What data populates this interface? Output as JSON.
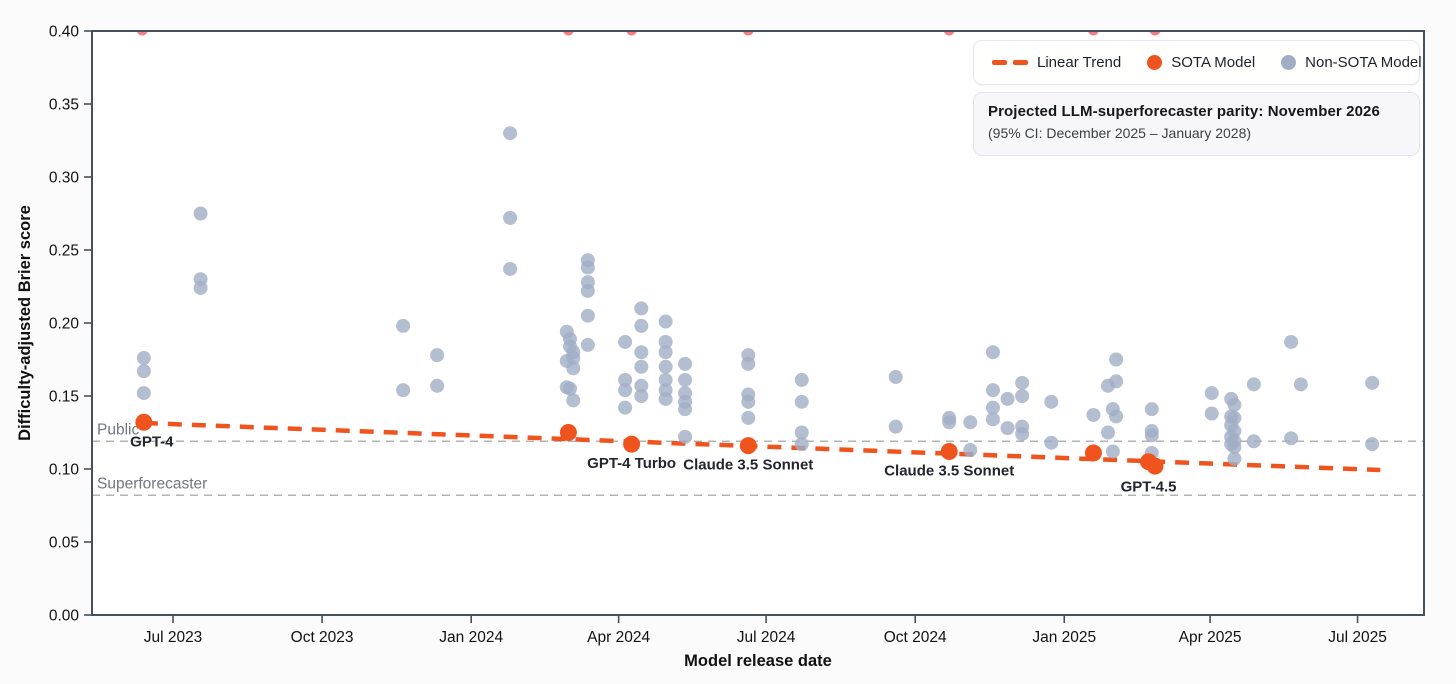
{
  "chart_data": {
    "type": "scatter",
    "xlabel": "Model release date",
    "ylabel": "Difficulty-adjusted Brier score",
    "ylim": [
      0,
      0.4
    ],
    "y_ticks": [
      "0.00",
      "0.05",
      "0.10",
      "0.15",
      "0.20",
      "0.25",
      "0.30",
      "0.35",
      "0.40"
    ],
    "x_domain": [
      "2023-05-12",
      "2025-08-11"
    ],
    "x_ticks": [
      {
        "label": "Jul 2023",
        "date": "2023-07-01"
      },
      {
        "label": "Oct 2023",
        "date": "2023-10-01"
      },
      {
        "label": "Jan 2024",
        "date": "2024-01-01"
      },
      {
        "label": "Apr 2024",
        "date": "2024-04-01"
      },
      {
        "label": "Jul 2024",
        "date": "2024-07-01"
      },
      {
        "label": "Oct 2024",
        "date": "2024-10-01"
      },
      {
        "label": "Jan 2025",
        "date": "2025-01-01"
      },
      {
        "label": "Apr 2025",
        "date": "2025-04-01"
      },
      {
        "label": "Jul 2025",
        "date": "2025-07-01"
      }
    ],
    "reference_lines": [
      {
        "label": "Public",
        "value": 0.119
      },
      {
        "label": "Superforecaster",
        "value": 0.082
      }
    ],
    "trend": {
      "name": "Linear Trend",
      "start": {
        "date": "2023-06-13",
        "value": 0.1315
      },
      "end": {
        "date": "2025-07-15",
        "value": 0.0993
      }
    },
    "sota_points": [
      {
        "date": "2023-06-13",
        "value": 0.132,
        "label": "GPT-4"
      },
      {
        "date": "2024-03-01",
        "value": 0.125,
        "label": ""
      },
      {
        "date": "2024-04-09",
        "value": 0.117,
        "label": "GPT-4 Turbo"
      },
      {
        "date": "2024-06-20",
        "value": 0.116,
        "label": "Claude 3.5 Sonnet"
      },
      {
        "date": "2024-10-22",
        "value": 0.112,
        "label": "Claude 3.5 Sonnet"
      },
      {
        "date": "2025-01-19",
        "value": 0.111,
        "label": ""
      },
      {
        "date": "2025-02-22",
        "value": 0.105,
        "label": "GPT-4.5"
      },
      {
        "date": "2025-02-26",
        "value": 0.102,
        "label": ""
      }
    ],
    "clipped_points_above_axis": {
      "note": "values above 0.40, clipped at top edge",
      "dates": [
        "2023-06-12",
        "2024-03-01",
        "2024-04-09",
        "2024-06-20",
        "2024-10-22",
        "2025-01-19",
        "2025-02-26"
      ]
    },
    "non_sota_points": [
      [
        "2023-06-13",
        0.176
      ],
      [
        "2023-06-13",
        0.167
      ],
      [
        "2023-06-13",
        0.152
      ],
      [
        "2023-07-18",
        0.275
      ],
      [
        "2023-07-18",
        0.23
      ],
      [
        "2023-07-18",
        0.224
      ],
      [
        "2023-11-20",
        0.198
      ],
      [
        "2023-11-20",
        0.154
      ],
      [
        "2023-12-11",
        0.178
      ],
      [
        "2023-12-11",
        0.157
      ],
      [
        "2024-01-25",
        0.33
      ],
      [
        "2024-01-25",
        0.272
      ],
      [
        "2024-01-25",
        0.237
      ],
      [
        "2024-02-29",
        0.194
      ],
      [
        "2024-02-29",
        0.174
      ],
      [
        "2024-02-29",
        0.156
      ],
      [
        "2024-03-02",
        0.189
      ],
      [
        "2024-03-02",
        0.184
      ],
      [
        "2024-03-02",
        0.155
      ],
      [
        "2024-03-04",
        0.18
      ],
      [
        "2024-03-04",
        0.176
      ],
      [
        "2024-03-04",
        0.169
      ],
      [
        "2024-03-04",
        0.147
      ],
      [
        "2024-03-13",
        0.243
      ],
      [
        "2024-03-13",
        0.238
      ],
      [
        "2024-03-13",
        0.228
      ],
      [
        "2024-03-13",
        0.222
      ],
      [
        "2024-03-13",
        0.205
      ],
      [
        "2024-03-13",
        0.185
      ],
      [
        "2024-04-05",
        0.187
      ],
      [
        "2024-04-05",
        0.161
      ],
      [
        "2024-04-05",
        0.154
      ],
      [
        "2024-04-05",
        0.142
      ],
      [
        "2024-04-15",
        0.21
      ],
      [
        "2024-04-15",
        0.198
      ],
      [
        "2024-04-15",
        0.18
      ],
      [
        "2024-04-15",
        0.17
      ],
      [
        "2024-04-15",
        0.157
      ],
      [
        "2024-04-15",
        0.15
      ],
      [
        "2024-04-30",
        0.201
      ],
      [
        "2024-04-30",
        0.187
      ],
      [
        "2024-04-30",
        0.18
      ],
      [
        "2024-04-30",
        0.17
      ],
      [
        "2024-04-30",
        0.161
      ],
      [
        "2024-04-30",
        0.154
      ],
      [
        "2024-04-30",
        0.148
      ],
      [
        "2024-05-12",
        0.172
      ],
      [
        "2024-05-12",
        0.161
      ],
      [
        "2024-05-12",
        0.152
      ],
      [
        "2024-05-12",
        0.146
      ],
      [
        "2024-05-12",
        0.141
      ],
      [
        "2024-05-12",
        0.122
      ],
      [
        "2024-06-20",
        0.178
      ],
      [
        "2024-06-20",
        0.172
      ],
      [
        "2024-06-20",
        0.151
      ],
      [
        "2024-06-20",
        0.146
      ],
      [
        "2024-06-20",
        0.135
      ],
      [
        "2024-07-23",
        0.161
      ],
      [
        "2024-07-23",
        0.146
      ],
      [
        "2024-07-23",
        0.125
      ],
      [
        "2024-07-23",
        0.117
      ],
      [
        "2024-09-19",
        0.163
      ],
      [
        "2024-09-19",
        0.129
      ],
      [
        "2024-10-22",
        0.135
      ],
      [
        "2024-10-22",
        0.132
      ],
      [
        "2024-11-04",
        0.132
      ],
      [
        "2024-11-04",
        0.113
      ],
      [
        "2024-11-18",
        0.18
      ],
      [
        "2024-11-18",
        0.154
      ],
      [
        "2024-11-18",
        0.142
      ],
      [
        "2024-11-18",
        0.134
      ],
      [
        "2024-11-27",
        0.148
      ],
      [
        "2024-11-27",
        0.128
      ],
      [
        "2024-12-06",
        0.159
      ],
      [
        "2024-12-06",
        0.15
      ],
      [
        "2024-12-06",
        0.129
      ],
      [
        "2024-12-06",
        0.124
      ],
      [
        "2024-12-24",
        0.146
      ],
      [
        "2024-12-24",
        0.118
      ],
      [
        "2025-01-19",
        0.137
      ],
      [
        "2025-01-28",
        0.157
      ],
      [
        "2025-01-28",
        0.125
      ],
      [
        "2025-01-31",
        0.141
      ],
      [
        "2025-01-31",
        0.112
      ],
      [
        "2025-02-02",
        0.175
      ],
      [
        "2025-02-02",
        0.16
      ],
      [
        "2025-02-02",
        0.136
      ],
      [
        "2025-02-24",
        0.141
      ],
      [
        "2025-02-24",
        0.126
      ],
      [
        "2025-02-24",
        0.123
      ],
      [
        "2025-02-24",
        0.111
      ],
      [
        "2025-04-02",
        0.152
      ],
      [
        "2025-04-02",
        0.138
      ],
      [
        "2025-04-14",
        0.148
      ],
      [
        "2025-04-14",
        0.136
      ],
      [
        "2025-04-14",
        0.13
      ],
      [
        "2025-04-14",
        0.122
      ],
      [
        "2025-04-14",
        0.117
      ],
      [
        "2025-04-16",
        0.144
      ],
      [
        "2025-04-16",
        0.135
      ],
      [
        "2025-04-16",
        0.126
      ],
      [
        "2025-04-16",
        0.119
      ],
      [
        "2025-04-16",
        0.115
      ],
      [
        "2025-04-16",
        0.107
      ],
      [
        "2025-04-28",
        0.158
      ],
      [
        "2025-04-28",
        0.119
      ],
      [
        "2025-05-21",
        0.187
      ],
      [
        "2025-05-21",
        0.121
      ],
      [
        "2025-05-27",
        0.158
      ],
      [
        "2025-07-10",
        0.159
      ],
      [
        "2025-07-10",
        0.117
      ]
    ]
  },
  "legend": {
    "items": [
      {
        "label": "Linear Trend",
        "swatch": "dash"
      },
      {
        "label": "SOTA Model",
        "swatch": "dot-orange"
      },
      {
        "label": "Non-SOTA Model",
        "swatch": "dot-gray"
      }
    ]
  },
  "annotation": {
    "title": "Projected LLM-superforecaster parity: November 2026",
    "subtitle": "(95% CI: December 2025 – January 2028)"
  },
  "colors": {
    "sota_orange": "#f0541e",
    "non_sota_gray": "#a0aec5",
    "clipped_red": "#ed6a70",
    "trend_orange": "#f0541e",
    "spine": "#46505e",
    "ref_line": "#b3b3b3",
    "ref_label": "#707683",
    "tick_label": "#111111",
    "sota_label": "#23262d",
    "plot_bg": "#ffffff"
  }
}
